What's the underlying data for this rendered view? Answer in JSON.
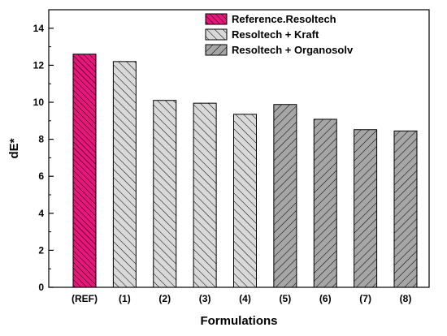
{
  "chart_data": {
    "type": "bar",
    "xlabel": "Formulations",
    "ylabel": "dE*",
    "ylim": [
      0,
      15
    ],
    "yticks": [
      0,
      2,
      4,
      6,
      8,
      10,
      12,
      14
    ],
    "categories": [
      "(REF)",
      "(1)",
      "(2)",
      "(3)",
      "(4)",
      "(5)",
      "(6)",
      "(7)",
      "(8)"
    ],
    "values": [
      12.6,
      12.2,
      10.1,
      9.95,
      9.35,
      9.88,
      9.08,
      8.52,
      8.45
    ],
    "groups": [
      "ref",
      "kraft",
      "kraft",
      "kraft",
      "kraft",
      "organosolv",
      "organosolv",
      "organosolv",
      "organosolv"
    ],
    "series": [
      {
        "key": "ref",
        "name": "Reference.Resoltech",
        "color": "#e8157a",
        "hatch": "dense-backslash"
      },
      {
        "key": "kraft",
        "name": "Resoltech + Kraft",
        "color": "#d9d9d9",
        "hatch": "backslash"
      },
      {
        "key": "organosolv",
        "name": "Resoltech + Organosolv",
        "color": "#a6a6a6",
        "hatch": "slash"
      }
    ],
    "legend_position": "top-right",
    "grid": false
  }
}
